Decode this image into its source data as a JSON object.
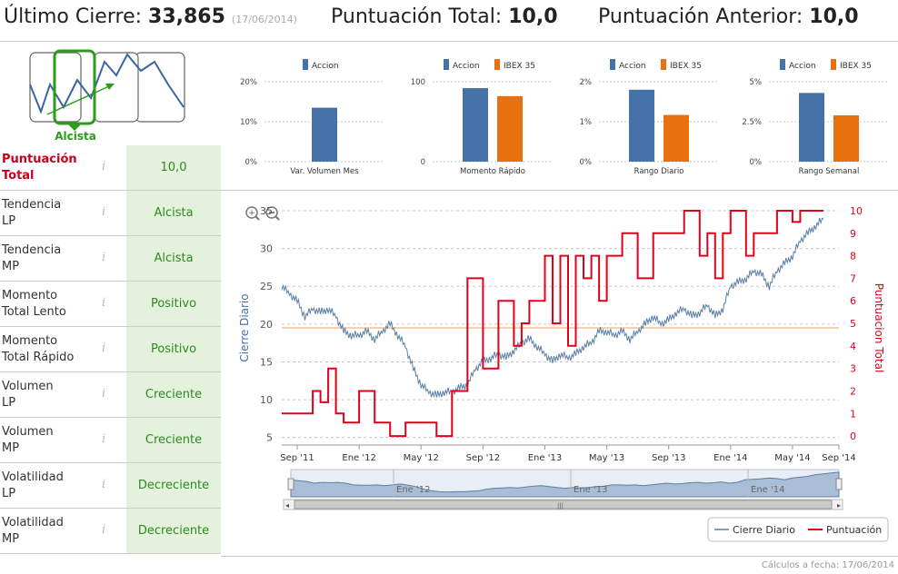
{
  "header": {
    "last_close_label": "Último Cierre:",
    "last_close_value": "33,865",
    "last_close_date": "(17/06/2014)",
    "score_label": "Puntuación Total:",
    "score_value": "10,0",
    "prev_score_label": "Puntuación Anterior:",
    "prev_score_value": "10,0"
  },
  "trend": {
    "label": "Alcista"
  },
  "rows": [
    {
      "label1": "Puntuación",
      "label2": "Total",
      "info": "i",
      "value": "10,0"
    },
    {
      "label1": "Tendencia",
      "label2": "LP",
      "info": "i",
      "value": "Alcista"
    },
    {
      "label1": "Tendencia",
      "label2": "MP",
      "info": "i",
      "value": "Alcista"
    },
    {
      "label1": "Momento",
      "label2": "Total Lento",
      "info": "i",
      "value": "Positivo"
    },
    {
      "label1": "Momento",
      "label2": "Total Rápido",
      "info": "i",
      "value": "Positivo"
    },
    {
      "label1": "Volumen",
      "label2": "LP",
      "info": "i",
      "value": "Creciente"
    },
    {
      "label1": "Volumen",
      "label2": "MP",
      "info": "i",
      "value": "Creciente"
    },
    {
      "label1": "Volatilidad",
      "label2": "LP",
      "info": "i",
      "value": "Decreciente"
    },
    {
      "label1": "Volatilidad",
      "label2": "MP",
      "info": "i",
      "value": "Decreciente"
    }
  ],
  "colors": {
    "accion": "#4572a7",
    "ibex": "#e8700f",
    "green": "#2e8a1e",
    "red": "#e2001a",
    "line": "#5b7fa6",
    "ref": "#f2c197"
  },
  "chart_data": [
    {
      "type": "bar",
      "title": "Var. Volumen Mes",
      "legend": [
        "Accion"
      ],
      "yticks": [
        "20%",
        "10%",
        "0%"
      ],
      "ylim": [
        0,
        20
      ],
      "values": [
        13.5
      ]
    },
    {
      "type": "bar",
      "title": "Momento Rápido",
      "legend": [
        "Accion",
        "IBEX 35"
      ],
      "yticks": [
        "100",
        "0"
      ],
      "ylim": [
        0,
        100
      ],
      "values": [
        92,
        82
      ]
    },
    {
      "type": "bar",
      "title": "Rango Diario",
      "legend": [
        "Accion",
        "IBEX 35"
      ],
      "yticks": [
        "2%",
        "1%",
        "0%"
      ],
      "ylim": [
        0,
        2
      ],
      "values": [
        1.8,
        1.17
      ]
    },
    {
      "type": "bar",
      "title": "Rango Semanal",
      "legend": [
        "Accion",
        "IBEX 35"
      ],
      "yticks": [
        "5%",
        "2.5%",
        "0%"
      ],
      "ylim": [
        0,
        5
      ],
      "values": [
        4.3,
        2.9
      ]
    },
    {
      "type": "line",
      "y1label": "Cierre Diario",
      "y2label": "Puntuacion Total",
      "y1lim": [
        4,
        35
      ],
      "y2lim": [
        -0.4,
        10
      ],
      "y1ticks": [
        "5",
        "10",
        "15",
        "20",
        "25",
        "30",
        "35"
      ],
      "y2ticks": [
        "0",
        "1",
        "2",
        "3",
        "4",
        "5",
        "6",
        "7",
        "8",
        "9",
        "10"
      ],
      "xlim": [
        0,
        36
      ],
      "xticks": [
        {
          "pos": 1,
          "label": "Sep '11"
        },
        {
          "pos": 5,
          "label": "Ene '12"
        },
        {
          "pos": 9,
          "label": "May '12"
        },
        {
          "pos": 13,
          "label": "Sep '12"
        },
        {
          "pos": 17,
          "label": "Ene '13"
        },
        {
          "pos": 21,
          "label": "May '13"
        },
        {
          "pos": 25,
          "label": "Sep '13"
        },
        {
          "pos": 29,
          "label": "Ene '14"
        },
        {
          "pos": 33,
          "label": "May '14"
        },
        {
          "pos": 36,
          "label": "Sep '14"
        }
      ],
      "reference_line": 19.5,
      "close_series": {
        "name": "Cierre Diario",
        "x": [
          0,
          0.5,
          1,
          1.5,
          2,
          2.5,
          3,
          3.5,
          4,
          4.5,
          5,
          5.5,
          6,
          6.5,
          7,
          7.5,
          8,
          8.5,
          9,
          9.5,
          10,
          10.5,
          11,
          11.5,
          12,
          12.5,
          13,
          13.5,
          14,
          14.5,
          15,
          15.5,
          16,
          16.5,
          17,
          17.5,
          18,
          18.5,
          19,
          19.5,
          20,
          20.5,
          21,
          21.5,
          22,
          22.5,
          23,
          23.5,
          24,
          24.5,
          25,
          25.5,
          26,
          26.5,
          27,
          27.5,
          28,
          28.5,
          29,
          29.5,
          30,
          30.5,
          31,
          31.5,
          32,
          32.5,
          33,
          33.5,
          34,
          34.5,
          35
        ],
        "values": [
          25,
          24,
          23,
          21,
          22,
          21.5,
          22,
          21,
          19,
          18.5,
          18.5,
          19,
          18,
          19,
          20,
          18.5,
          17,
          14,
          12,
          11,
          10.5,
          11,
          11,
          11.5,
          12,
          14,
          15,
          15.5,
          16,
          15.5,
          16.5,
          17.5,
          18,
          17,
          16,
          15,
          16,
          15.5,
          16,
          17,
          17.5,
          19,
          19,
          18.5,
          19,
          18,
          19,
          20,
          21,
          20,
          20.5,
          21.5,
          22,
          21,
          21.5,
          22.5,
          21,
          22,
          25,
          25.5,
          26,
          27,
          26.5,
          25,
          27,
          28,
          29,
          31,
          32,
          33,
          33.9
        ]
      },
      "score_series": {
        "name": "Puntuación",
        "x": [
          0,
          2,
          2,
          2.5,
          2.5,
          3,
          3,
          3.5,
          3.5,
          4,
          4,
          5,
          5,
          6,
          6,
          7,
          7,
          8,
          8,
          8.5,
          8.5,
          10,
          10,
          11,
          11,
          12,
          12,
          13,
          13,
          14,
          14,
          15,
          15,
          15.5,
          15.5,
          16,
          16,
          17,
          17,
          17.5,
          17.5,
          18,
          18,
          18.5,
          18.5,
          19,
          19,
          19.5,
          19.5,
          20,
          20,
          20.5,
          20.5,
          21,
          21,
          22,
          22,
          23,
          23,
          24,
          24,
          25,
          25,
          26,
          26,
          27,
          27,
          27.5,
          27.5,
          28,
          28,
          28.5,
          28.5,
          29,
          29,
          30,
          30,
          30.5,
          30.5,
          32,
          32,
          33,
          33,
          33.5,
          33.5,
          34,
          34,
          35
        ],
        "values": [
          1,
          1,
          2,
          2,
          1.5,
          1.5,
          3,
          3,
          1,
          1,
          0.6,
          0.6,
          2,
          2,
          0.6,
          0.6,
          0,
          0,
          0.6,
          0.6,
          0.6,
          0.6,
          0,
          0,
          2,
          2,
          7,
          7,
          3,
          3,
          6,
          6,
          4,
          4,
          5,
          5,
          6,
          6,
          8,
          8,
          5,
          5,
          8,
          8,
          4,
          4,
          8,
          8,
          7,
          7,
          8,
          8,
          6,
          6,
          8,
          8,
          9,
          9,
          7,
          7,
          9,
          9,
          9,
          9,
          10,
          10,
          8,
          8,
          9,
          9,
          7,
          7,
          9,
          9,
          10,
          10,
          8,
          8,
          9,
          9,
          10,
          10,
          9.5,
          9.5,
          10,
          10,
          10,
          10
        ]
      }
    }
  ],
  "legend": {
    "close_label": "Cierre Diario",
    "score_label": "Puntuación"
  },
  "navigator": {
    "labels": [
      "Ene '12",
      "Ene '13",
      "Ene '14"
    ],
    "grip": "|||"
  },
  "footer": {
    "note": "Cálculos a fecha: 17/06/2014"
  }
}
